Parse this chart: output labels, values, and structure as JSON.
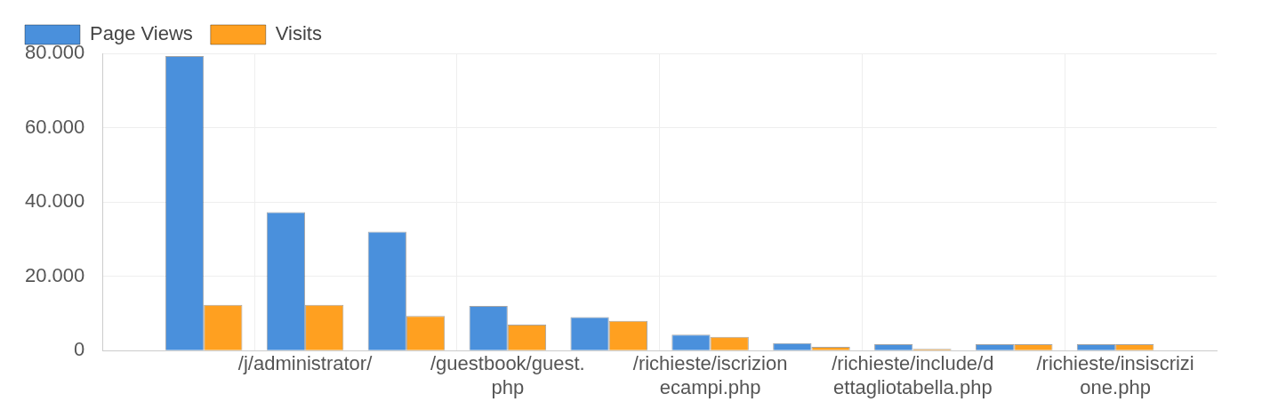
{
  "chart_data": {
    "type": "bar",
    "categories": [
      null,
      "/j/administrator/",
      null,
      "/guestbook/guest.php",
      null,
      "/richieste/iscrizionecampi.php",
      null,
      "/richieste/include/dettagliotabella.php",
      null,
      "/richieste/insiscrizione.php"
    ],
    "series": [
      {
        "name": "Page Views",
        "color": "#4a90dc",
        "values": [
          79300,
          37300,
          32000,
          12000,
          9000,
          4300,
          2000,
          1700,
          1700,
          1700
        ]
      },
      {
        "name": "Visits",
        "color": "#ffa020",
        "values": [
          12300,
          12300,
          9300,
          7000,
          8000,
          3700,
          1000,
          200,
          1700,
          1700
        ]
      }
    ],
    "ylim": [
      0,
      80000
    ],
    "yticks": [
      0,
      {
        "value": 20000,
        "label": "20.000"
      },
      {
        "value": 40000,
        "label": "40.000"
      },
      {
        "value": 60000,
        "label": "60.000"
      },
      {
        "value": 80000,
        "label": "80.000"
      }
    ],
    "grid": true,
    "legend": "top left"
  }
}
